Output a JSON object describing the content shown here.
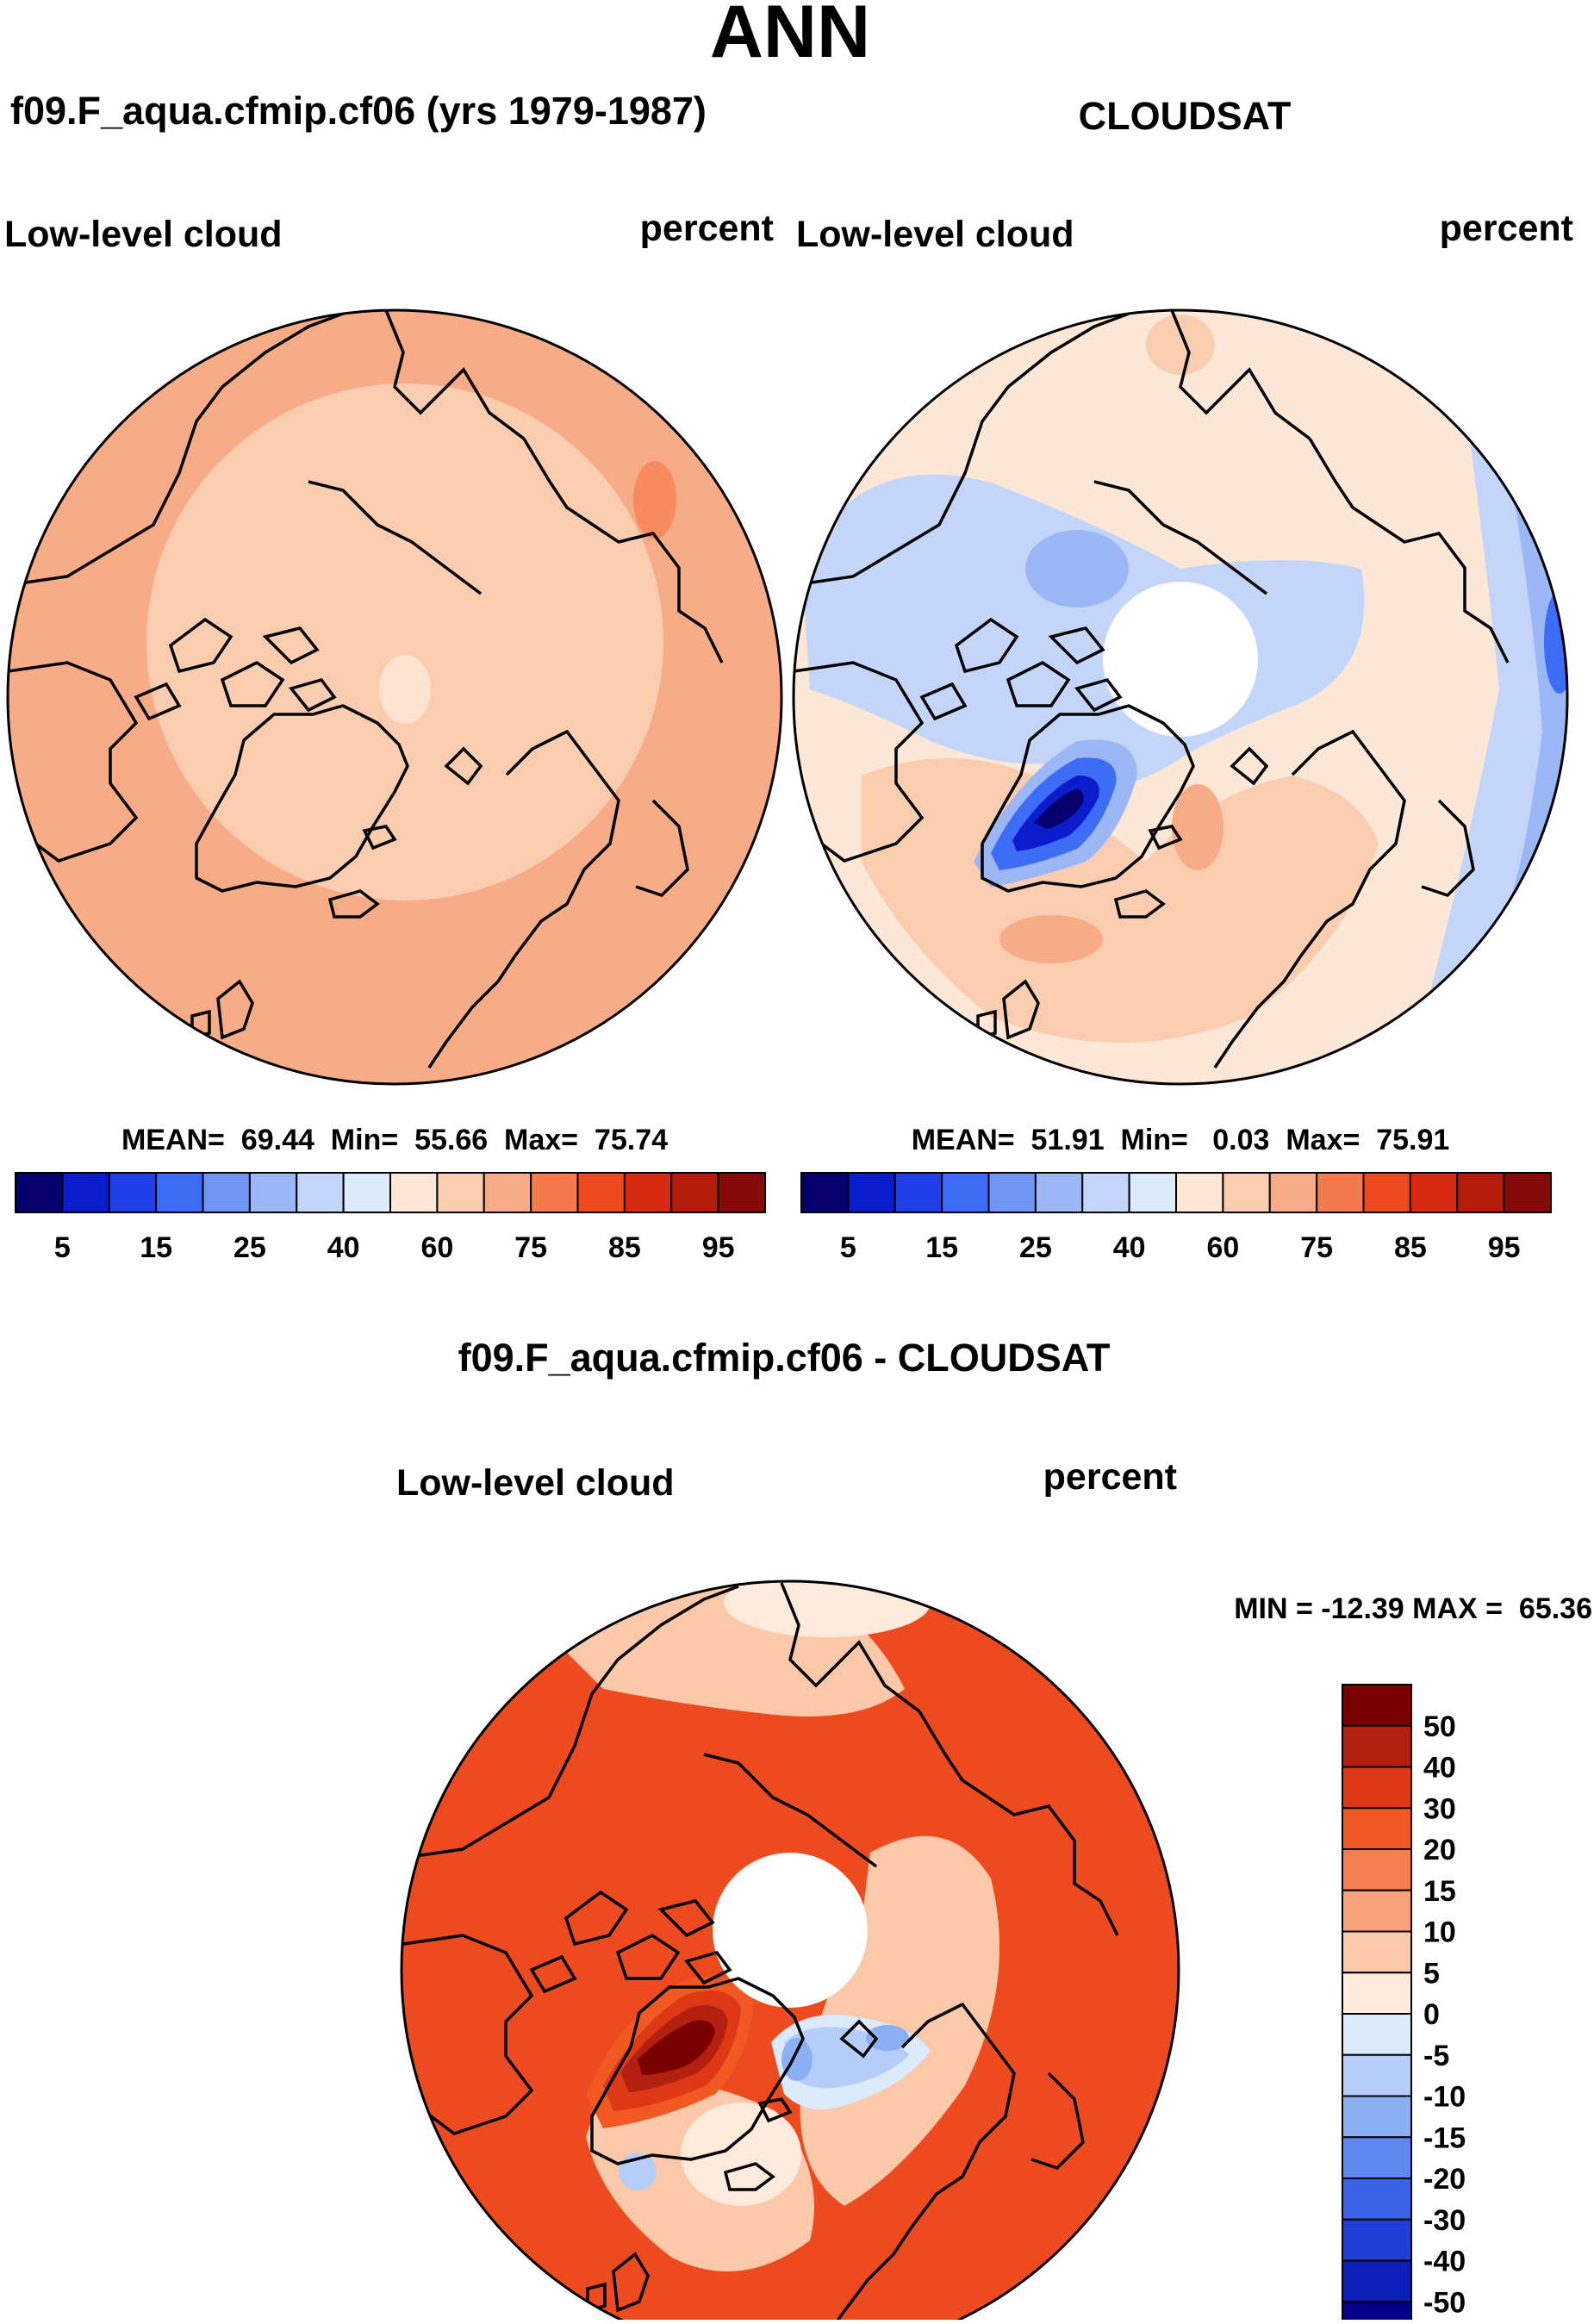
{
  "page_title": "ANN",
  "colors": {
    "ocean_bg": "#f7b08a",
    "land_line": "#000000",
    "missing": "#ffffff"
  },
  "chart_data": [
    {
      "type": "heatmap",
      "projection": "north-polar-stereographic",
      "title": "f09.F_aqua.cfmip.cf06 (yrs 1979-1987)",
      "left_label": "Low-level cloud",
      "right_label": "percent",
      "stats_text": "MEAN=  69.44  Min=  55.66  Max=  75.74",
      "mean": 69.44,
      "min": 55.66,
      "max": 75.74,
      "field_regions": [
        {
          "name": "outer ring",
          "value_band": "70-75",
          "color": "#f7ab86"
        },
        {
          "name": "inner Arctic",
          "value_band": "65-70",
          "color": "#fbcdb0"
        },
        {
          "name": "central spot",
          "value_band": "60-65",
          "color": "#fde3d0"
        }
      ],
      "colorbar": {
        "orientation": "horizontal",
        "colors": [
          "#05006e",
          "#0a1ccc",
          "#1f3fe8",
          "#3d6cf5",
          "#6f95f5",
          "#9bb7f5",
          "#c3d6fa",
          "#dcebfc",
          "#fde7d6",
          "#fbcdb0",
          "#f7ab86",
          "#f37a4b",
          "#ee4a1f",
          "#d62a10",
          "#b31d0a",
          "#850a0a"
        ],
        "tick_labels": [
          "5",
          "15",
          "25",
          "40",
          "60",
          "75",
          "85",
          "95"
        ]
      }
    },
    {
      "type": "heatmap",
      "projection": "north-polar-stereographic",
      "title": "CLOUDSAT",
      "left_label": "Low-level cloud",
      "right_label": "percent",
      "stats_text": "MEAN=  51.91  Min=   0.03  Max=  75.91",
      "mean": 51.91,
      "min": 0.03,
      "max": 75.91,
      "field_regions": [
        {
          "name": "greenland minimum",
          "value_band": "<5",
          "color": "#05006e"
        },
        {
          "name": "north america / siberia",
          "value_band": "40-45",
          "color": "#c3d6fa"
        },
        {
          "name": "atlantic",
          "value_band": "60-75",
          "color": "#fbcdb0"
        },
        {
          "name": "pole hole",
          "value_band": "missing",
          "color": "#ffffff"
        }
      ],
      "colorbar": {
        "orientation": "horizontal",
        "colors": [
          "#05006e",
          "#0a1ccc",
          "#1f3fe8",
          "#3d6cf5",
          "#6f95f5",
          "#9bb7f5",
          "#c3d6fa",
          "#dcebfc",
          "#fde7d6",
          "#fbcdb0",
          "#f7ab86",
          "#f37a4b",
          "#ee4a1f",
          "#d62a10",
          "#b31d0a",
          "#850a0a"
        ],
        "tick_labels": [
          "5",
          "15",
          "25",
          "40",
          "60",
          "75",
          "85",
          "95"
        ]
      }
    },
    {
      "type": "heatmap",
      "projection": "north-polar-stereographic",
      "title": "f09.F_aqua.cfmip.cf06 - CLOUDSAT",
      "left_label": "Low-level cloud",
      "right_label": "percent",
      "stats_text": "MIN = -12.39 MAX =  65.36",
      "min": -12.39,
      "max": 65.36,
      "field_regions": [
        {
          "name": "greenland maximum",
          "value_band": ">50",
          "color": "#7a0000"
        },
        {
          "name": "ocean ring",
          "value_band": "20-30",
          "color": "#ee4a1f"
        },
        {
          "name": "norwegian sea minimum",
          "value_band": "-10 to -5",
          "color": "#aec6f7"
        },
        {
          "name": "pole hole",
          "value_band": "missing",
          "color": "#ffffff"
        }
      ],
      "colorbar": {
        "orientation": "vertical",
        "colors": [
          "#7a0000",
          "#b3200f",
          "#dc3914",
          "#f05a22",
          "#f57f4e",
          "#f9a27a",
          "#fbc9a9",
          "#fdeadb",
          "#dcebfc",
          "#b5cdf8",
          "#8ab0f3",
          "#5d89ee",
          "#3a63e6",
          "#1e3ed6",
          "#0c1fb8",
          "#05008a"
        ],
        "tick_labels": [
          "50",
          "40",
          "30",
          "20",
          "15",
          "10",
          "5",
          "0",
          "-5",
          "-10",
          "-15",
          "-20",
          "-30",
          "-40",
          "-50"
        ]
      }
    }
  ]
}
